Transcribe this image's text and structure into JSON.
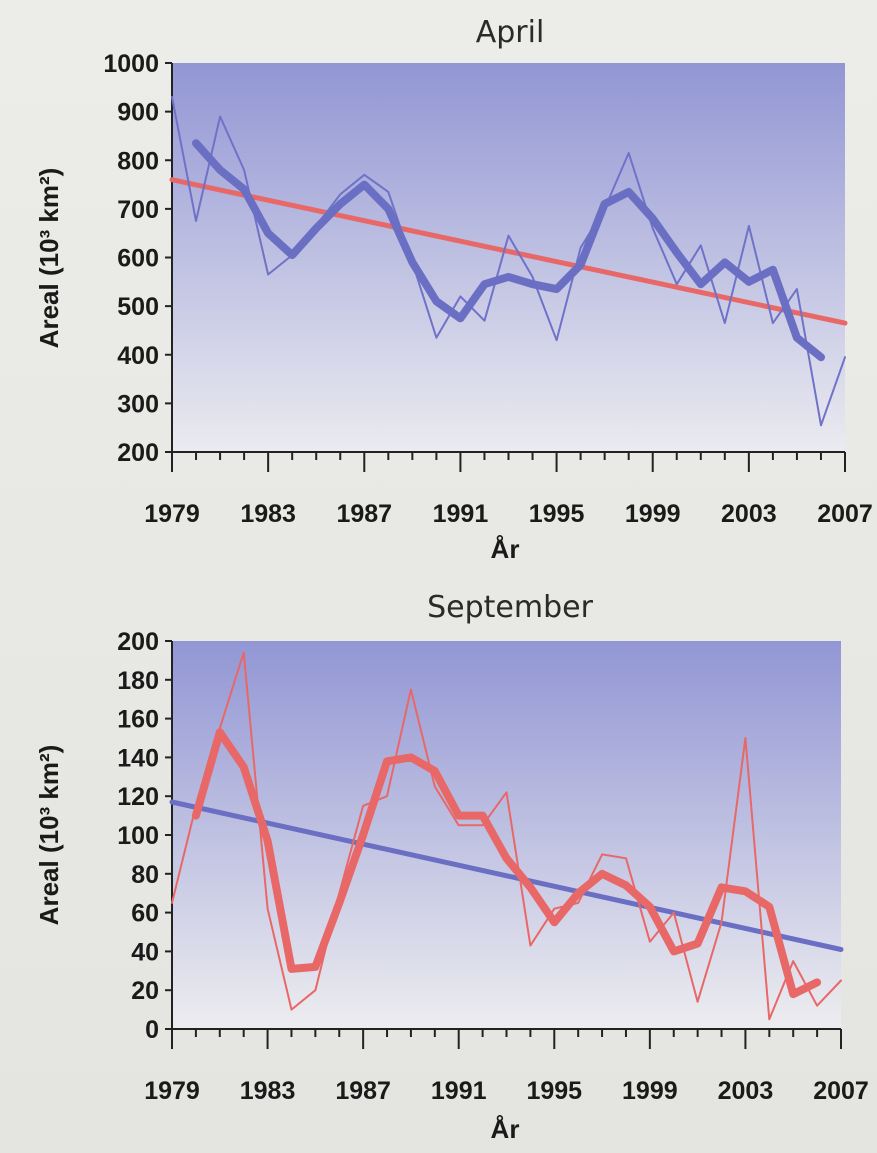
{
  "chart_data": [
    {
      "type": "line",
      "title": "April",
      "xlabel": "År",
      "ylabel": "Areal (10³ km²)",
      "xlim": [
        1979,
        2007
      ],
      "ylim": [
        200,
        1000
      ],
      "xticks": [
        "1979",
        "1983",
        "1987",
        "1991",
        "1995",
        "1999",
        "2003",
        "2007"
      ],
      "yticks": [
        "200",
        "300",
        "400",
        "500",
        "600",
        "700",
        "800",
        "900",
        "1000"
      ],
      "series": [
        {
          "kind": "annual",
          "color": "#6f72c8",
          "x": [
            1979,
            1980,
            1981,
            1982,
            1983,
            1984,
            1985,
            1986,
            1987,
            1988,
            1989,
            1990,
            1991,
            1992,
            1993,
            1994,
            1995,
            1996,
            1997,
            1998,
            1999,
            2000,
            2001,
            2002,
            2003,
            2004,
            2005,
            2006,
            2007
          ],
          "y": [
            930,
            675,
            890,
            780,
            565,
            605,
            665,
            730,
            770,
            735,
            590,
            435,
            520,
            470,
            645,
            560,
            430,
            620,
            700,
            815,
            660,
            545,
            625,
            465,
            665,
            465,
            535,
            255,
            395
          ]
        },
        {
          "kind": "smoothed",
          "color": "#6a6fc4",
          "x": [
            1980,
            1981,
            1982,
            1983,
            1984,
            1985,
            1986,
            1987,
            1988,
            1989,
            1990,
            1991,
            1992,
            1993,
            1994,
            1995,
            1996,
            1997,
            1998,
            1999,
            2000,
            2001,
            2002,
            2003,
            2004,
            2005,
            2006
          ],
          "y": [
            835,
            780,
            740,
            650,
            605,
            660,
            710,
            750,
            700,
            590,
            510,
            475,
            545,
            560,
            545,
            535,
            585,
            710,
            735,
            680,
            610,
            545,
            590,
            550,
            575,
            435,
            395
          ]
        },
        {
          "kind": "trend",
          "color": "#e86868",
          "x": [
            1979,
            2007
          ],
          "y": [
            760,
            465
          ]
        }
      ]
    },
    {
      "type": "line",
      "title": "September",
      "xlabel": "År",
      "ylabel": "Areal (10³ km²)",
      "xlim": [
        1979,
        2007
      ],
      "ylim": [
        0,
        200
      ],
      "xticks": [
        "1979",
        "1983",
        "1987",
        "1991",
        "1995",
        "1999",
        "2003",
        "2007"
      ],
      "yticks": [
        "0",
        "20",
        "40",
        "60",
        "80",
        "100",
        "120",
        "140",
        "160",
        "180",
        "200"
      ],
      "series": [
        {
          "kind": "annual",
          "color": "#e86868",
          "x": [
            1979,
            1980,
            1981,
            1982,
            1983,
            1984,
            1985,
            1986,
            1987,
            1988,
            1989,
            1990,
            1991,
            1992,
            1993,
            1994,
            1995,
            1996,
            1997,
            1998,
            1999,
            2000,
            2001,
            2002,
            2003,
            2004,
            2005,
            2006,
            2007
          ],
          "y": [
            65,
            115,
            155,
            194,
            62,
            10,
            20,
            70,
            115,
            120,
            175,
            125,
            105,
            105,
            122,
            43,
            62,
            65,
            90,
            88,
            45,
            60,
            14,
            55,
            150,
            5,
            35,
            12,
            25
          ]
        },
        {
          "kind": "smoothed",
          "color": "#e86868",
          "x": [
            1980,
            1981,
            1982,
            1983,
            1984,
            1985,
            1986,
            1987,
            1988,
            1989,
            1990,
            1991,
            1992,
            1993,
            1994,
            1995,
            1996,
            1997,
            1998,
            1999,
            2000,
            2001,
            2002,
            2003,
            2004,
            2005,
            2006
          ],
          "y": [
            110,
            153,
            135,
            97,
            31,
            32,
            65,
            100,
            138,
            140,
            133,
            110,
            110,
            88,
            73,
            55,
            70,
            80,
            74,
            63,
            40,
            44,
            73,
            71,
            63,
            18,
            24
          ]
        },
        {
          "kind": "trend",
          "color": "#6a6fc4",
          "x": [
            1979,
            2007
          ],
          "y": [
            117,
            41
          ]
        }
      ]
    }
  ]
}
